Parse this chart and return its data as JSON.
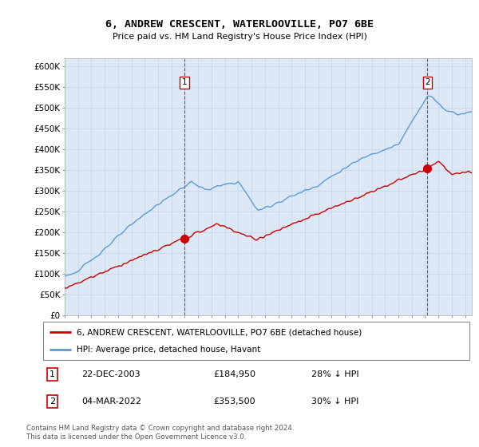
{
  "title": "6, ANDREW CRESCENT, WATERLOOVILLE, PO7 6BE",
  "subtitle": "Price paid vs. HM Land Registry's House Price Index (HPI)",
  "legend_line1": "6, ANDREW CRESCENT, WATERLOOVILLE, PO7 6BE (detached house)",
  "legend_line2": "HPI: Average price, detached house, Havant",
  "transaction1_date": "22-DEC-2003",
  "transaction1_price": "£184,950",
  "transaction1_hpi": "28% ↓ HPI",
  "transaction2_date": "04-MAR-2022",
  "transaction2_price": "£353,500",
  "transaction2_hpi": "30% ↓ HPI",
  "footnote_line1": "Contains HM Land Registry data © Crown copyright and database right 2024.",
  "footnote_line2": "This data is licensed under the Open Government Licence v3.0.",
  "hpi_color": "#5b9bd5",
  "price_paid_color": "#cc0000",
  "grid_color": "#c8d8e8",
  "chart_bg_color": "#dce8f5",
  "background_color": "#ffffff",
  "ylim_min": 0,
  "ylim_max": 620000,
  "yticks": [
    0,
    50000,
    100000,
    150000,
    200000,
    250000,
    300000,
    350000,
    400000,
    450000,
    500000,
    550000,
    600000
  ]
}
